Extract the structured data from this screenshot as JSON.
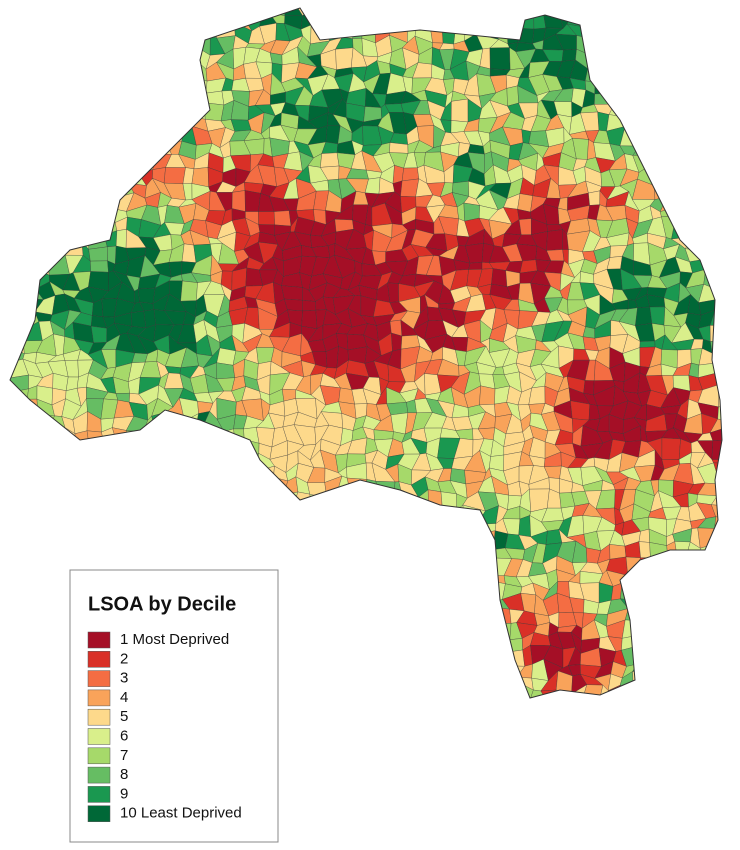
{
  "legend": {
    "title": "LSOA by Decile",
    "items": [
      {
        "label": "1 Most Deprived",
        "color": "#a50f26"
      },
      {
        "label": "2",
        "color": "#d93027"
      },
      {
        "label": "3",
        "color": "#f46d43"
      },
      {
        "label": "4",
        "color": "#f9a35a"
      },
      {
        "label": "5",
        "color": "#fdd98b"
      },
      {
        "label": "6",
        "color": "#d9ef8b"
      },
      {
        "label": "7",
        "color": "#a6d96a"
      },
      {
        "label": "8",
        "color": "#66bd63"
      },
      {
        "label": "9",
        "color": "#1a9850"
      },
      {
        "label": "10 Least Deprived",
        "color": "#006837"
      }
    ]
  }
}
